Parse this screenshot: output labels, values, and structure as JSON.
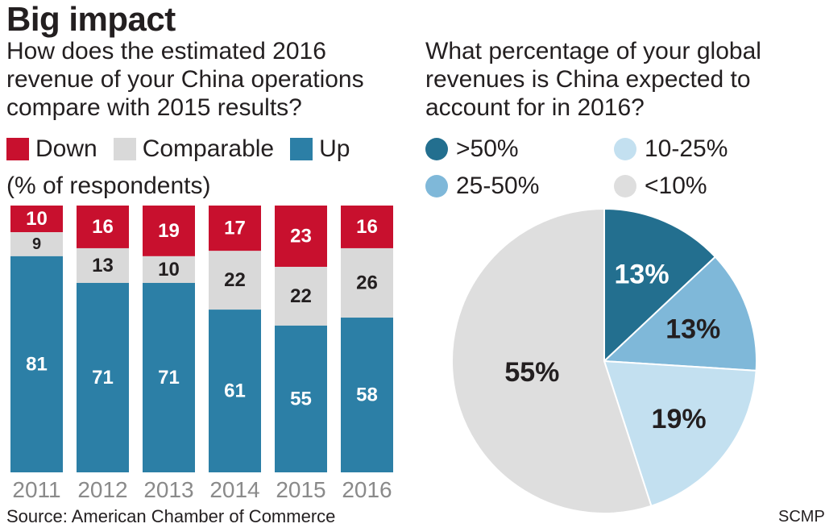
{
  "title": "Big impact",
  "left": {
    "question": "How does the estimated 2016 revenue of your China operations compare with 2015 results?",
    "unit": "(% of respondents)"
  },
  "right": {
    "question": "What percentage of your global revenues is China expected to account for in 2016?"
  },
  "source": "Source: American Chamber of Commerce",
  "credit": "SCMP",
  "colors": {
    "down": "#c8102e",
    "comparable": "#d9d9d9",
    "up": "#2c7fa6",
    "gt50": "#236f8f",
    "p25_50": "#7fb8d9",
    "p10_25": "#c3e0f0",
    "lt10": "#dedede"
  },
  "chart_data": [
    {
      "type": "bar",
      "stacked": true,
      "categories": [
        "2011",
        "2012",
        "2013",
        "2014",
        "2015",
        "2016"
      ],
      "series": [
        {
          "name": "Down",
          "values": [
            10,
            16,
            19,
            17,
            23,
            16
          ]
        },
        {
          "name": "Comparable",
          "values": [
            9,
            13,
            10,
            22,
            22,
            26
          ]
        },
        {
          "name": "Up",
          "values": [
            81,
            71,
            71,
            61,
            55,
            58
          ]
        }
      ],
      "title": "How does the estimated 2016 revenue of your China operations compare with 2015 results?",
      "ylabel": "(% of respondents)",
      "ylim": [
        0,
        100
      ]
    },
    {
      "type": "pie",
      "labels": [
        ">50%",
        "25-50%",
        "10-25%",
        "<10%"
      ],
      "values": [
        13,
        13,
        19,
        55
      ],
      "value_labels": [
        "13%",
        "13%",
        "19%",
        "55%"
      ],
      "title": "What percentage of your global revenues is China expected to account for in 2016?"
    }
  ]
}
